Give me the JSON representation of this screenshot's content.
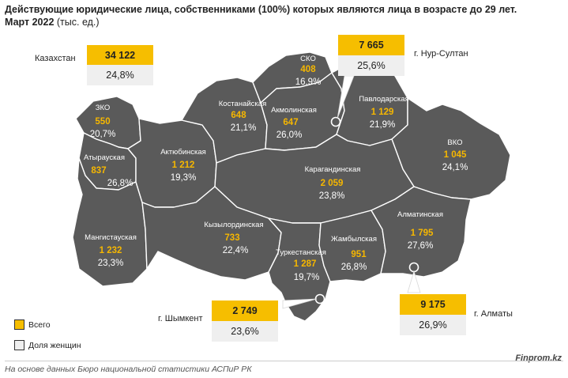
{
  "title": {
    "line1": "Действующие юридические лица, собственниками (100%) которых являются лица в возрасте до 29 лет.",
    "line2": "Март 2022",
    "unit": "(тыс. ед.)"
  },
  "colors": {
    "map_fill": "#5a5a5a",
    "border": "#ffffff",
    "total_text": "#f6b700",
    "callout_total": "#f6be00",
    "callout_share": "#efefef"
  },
  "country": {
    "label": "Казахстан",
    "total": "34 122",
    "share": "24,8%"
  },
  "regions": [
    {
      "id": "zko",
      "name": "ЗКО",
      "total": "550",
      "share": "20,7%"
    },
    {
      "id": "atyrau",
      "name": "Атырауская",
      "total": "837",
      "share": "26,8%"
    },
    {
      "id": "mangystau",
      "name": "Мангистауская",
      "total": "1 232",
      "share": "23,3%"
    },
    {
      "id": "aktobe",
      "name": "Актюбинская",
      "total": "1 212",
      "share": "19,3%"
    },
    {
      "id": "kostanay",
      "name": "Костанайская",
      "total": "648",
      "share": "21,1%"
    },
    {
      "id": "sko",
      "name": "СКО",
      "total": "408",
      "share": "16,9%"
    },
    {
      "id": "akmola",
      "name": "Акмолинская",
      "total": "647",
      "share": "26,0%"
    },
    {
      "id": "pavlodar",
      "name": "Павлодарская",
      "total": "1 129",
      "share": "21,9%"
    },
    {
      "id": "vko",
      "name": "ВКО",
      "total": "1 045",
      "share": "24,1%"
    },
    {
      "id": "karaganda",
      "name": "Карагандинская",
      "total": "2 059",
      "share": "23,8%"
    },
    {
      "id": "kyzylorda",
      "name": "Кызылординская",
      "total": "733",
      "share": "22,4%"
    },
    {
      "id": "turkestan",
      "name": "Туркестанская",
      "total": "1 287",
      "share": "19,7%"
    },
    {
      "id": "zhambyl",
      "name": "Жамбылская",
      "total": "951",
      "share": "26,8%"
    },
    {
      "id": "almaty_reg",
      "name": "Алматинская",
      "total": "1 795",
      "share": "27,6%"
    }
  ],
  "cities": [
    {
      "id": "nursultan",
      "label": "г. Нур-Султан",
      "total": "7 665",
      "share": "25,6%"
    },
    {
      "id": "shymkent",
      "label": "г. Шымкент",
      "total": "2 749",
      "share": "23,6%"
    },
    {
      "id": "almaty",
      "label": "г. Алматы",
      "total": "9 175",
      "share": "26,9%"
    }
  ],
  "legend": [
    {
      "label": "Всего",
      "color": "#f6be00"
    },
    {
      "label": "Доля женщин",
      "color": "#efefef"
    }
  ],
  "source": "На основе данных Бюро национальной статистики АСПиР РК",
  "brand": "Finprom.kz"
}
